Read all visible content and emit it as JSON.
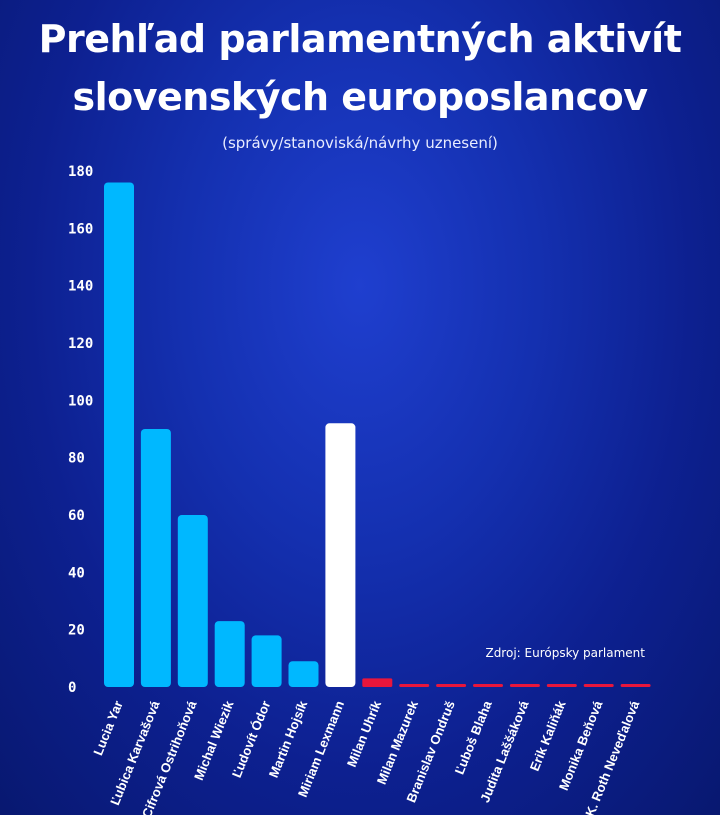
{
  "title_line1": "Prehľad parlamentných aktivít",
  "title_line2": "slovenských europoslancov",
  "subtitle": "(správy/stanoviská/návrhy uznesení)",
  "source": "Zdroj: Európsky parlament",
  "colors": {
    "blue": "#00b8ff",
    "white": "#ffffff",
    "red": "#e8163c"
  },
  "chart_data": {
    "type": "bar",
    "title": "Prehľad parlamentných aktivít slovenských europoslancov",
    "subtitle": "(správy/stanoviská/návrhy uznesení)",
    "xlabel": "",
    "ylabel": "",
    "ylim": [
      0,
      180
    ],
    "yticks": [
      0,
      20,
      40,
      60,
      80,
      100,
      120,
      140,
      160,
      180
    ],
    "categories": [
      "Lucia Yar",
      "Ľubica Karvašová",
      "V. Cifrová Ostrihoňová",
      "Michal Wiezik",
      "Ľudovít Ódor",
      "Martin Hojsík",
      "Miriam Lexmann",
      "Milan Uhrík",
      "Milan Mazurek",
      "Branislav Ondruš",
      "Ľuboš Blaha",
      "Judita Laššáková",
      "Erik Kaliňák",
      "Monika Beňová",
      "K. Roth Neveďalová"
    ],
    "values": [
      176,
      90,
      60,
      23,
      18,
      9,
      92,
      3,
      1,
      1,
      1,
      1,
      1,
      1,
      1
    ],
    "bar_colors": [
      "blue",
      "blue",
      "blue",
      "blue",
      "blue",
      "blue",
      "white",
      "red",
      "red",
      "red",
      "red",
      "red",
      "red",
      "red",
      "red"
    ],
    "grid": false,
    "legend": "none"
  }
}
